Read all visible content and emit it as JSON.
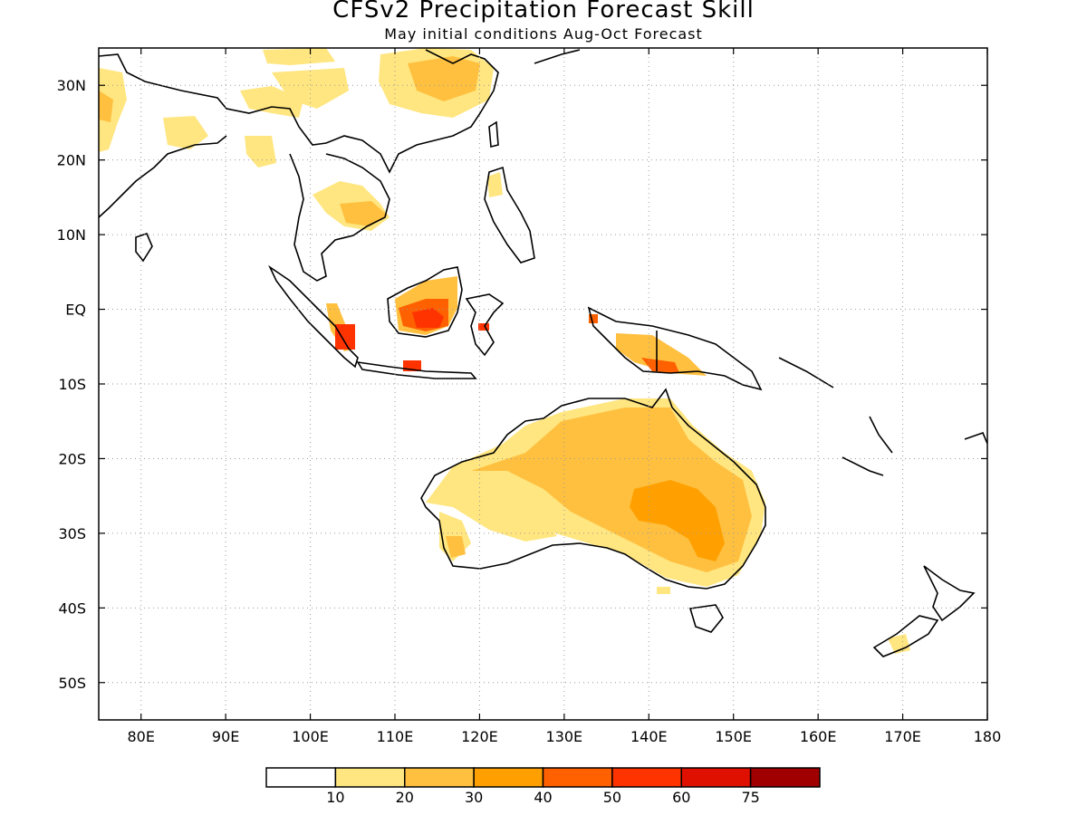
{
  "title": "CFSv2 Precipitation Forecast Skill",
  "subtitle": "May initial conditions  Aug-Oct Forecast",
  "map": {
    "projection": "lat-lon",
    "lon_range": [
      75,
      180
    ],
    "lat_range": [
      -55,
      35
    ],
    "lon_ticks": [
      {
        "value": 80,
        "label": "80E"
      },
      {
        "value": 90,
        "label": "90E"
      },
      {
        "value": 100,
        "label": "100E"
      },
      {
        "value": 110,
        "label": "110E"
      },
      {
        "value": 120,
        "label": "120E"
      },
      {
        "value": 130,
        "label": "130E"
      },
      {
        "value": 140,
        "label": "140E"
      },
      {
        "value": 150,
        "label": "150E"
      },
      {
        "value": 160,
        "label": "160E"
      },
      {
        "value": 170,
        "label": "170E"
      },
      {
        "value": 180,
        "label": "180"
      }
    ],
    "lat_ticks": [
      {
        "value": 30,
        "label": "30N"
      },
      {
        "value": 20,
        "label": "20N"
      },
      {
        "value": 10,
        "label": "10N"
      },
      {
        "value": 0,
        "label": "EQ"
      },
      {
        "value": -10,
        "label": "10S"
      },
      {
        "value": -20,
        "label": "20S"
      },
      {
        "value": -30,
        "label": "30S"
      },
      {
        "value": -40,
        "label": "40S"
      },
      {
        "value": -50,
        "label": "50S"
      }
    ],
    "grid": "dotted",
    "coastline_color": "#000000"
  },
  "colorbar": {
    "colors": [
      "#ffffff",
      "#ffe680",
      "#ffc040",
      "#ffa000",
      "#ff6000",
      "#ff3300",
      "#e01000",
      "#a00000"
    ],
    "labels": [
      "10",
      "20",
      "30",
      "40",
      "50",
      "60",
      "75"
    ]
  }
}
